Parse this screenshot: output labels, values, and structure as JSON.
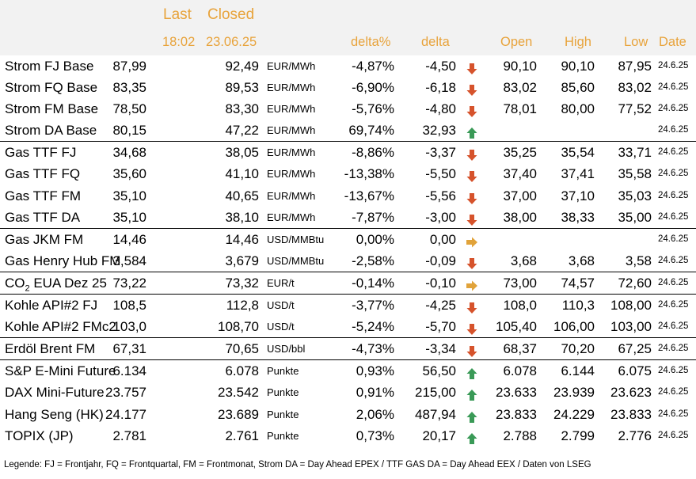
{
  "header": {
    "last_label": "Last",
    "closed_label": "Closed",
    "last_time": "18:02",
    "closed_date": "23.06.25",
    "delta_pct_label": "delta%",
    "delta_label": "delta",
    "open_label": "Open",
    "high_label": "High",
    "low_label": "Low",
    "date_label": "Date"
  },
  "colors": {
    "header_text": "#e8a33b",
    "up": "#3a9a57",
    "down": "#d6532c",
    "flat": "#e1a33a",
    "header_bg": "#f2f2f2"
  },
  "rows": [
    {
      "name": "Strom FJ Base",
      "last": "87,99",
      "closed": "92,49",
      "unit": "EUR/MWh",
      "delta_pct": "-4,87%",
      "delta": "-4,50",
      "dir": "down",
      "open": "90,10",
      "high": "90,10",
      "low": "87,95",
      "date": "24.6.25"
    },
    {
      "name": "Strom FQ Base",
      "last": "83,35",
      "closed": "89,53",
      "unit": "EUR/MWh",
      "delta_pct": "-6,90%",
      "delta": "-6,18",
      "dir": "down",
      "open": "83,02",
      "high": "85,60",
      "low": "83,02",
      "date": "24.6.25"
    },
    {
      "name": "Strom FM Base",
      "last": "78,50",
      "closed": "83,30",
      "unit": "EUR/MWh",
      "delta_pct": "-5,76%",
      "delta": "-4,80",
      "dir": "down",
      "open": "78,01",
      "high": "80,00",
      "low": "77,52",
      "date": "24.6.25"
    },
    {
      "name": "Strom DA Base",
      "last": "80,15",
      "closed": "47,22",
      "unit": "EUR/MWh",
      "delta_pct": "69,74%",
      "delta": "32,93",
      "dir": "up",
      "open": "",
      "high": "",
      "low": "",
      "date": "24.6.25"
    },
    {
      "name": "Gas TTF FJ",
      "last": "34,68",
      "closed": "38,05",
      "unit": "EUR/MWh",
      "delta_pct": "-8,86%",
      "delta": "-3,37",
      "dir": "down",
      "open": "35,25",
      "high": "35,54",
      "low": "33,71",
      "date": "24.6.25",
      "sep": true
    },
    {
      "name": "Gas TTF FQ",
      "last": "35,60",
      "closed": "41,10",
      "unit": "EUR/MWh",
      "delta_pct": "-13,38%",
      "delta": "-5,50",
      "dir": "down",
      "open": "37,40",
      "high": "37,41",
      "low": "35,58",
      "date": "24.6.25"
    },
    {
      "name": "Gas TTF FM",
      "last": "35,10",
      "closed": "40,65",
      "unit": "EUR/MWh",
      "delta_pct": "-13,67%",
      "delta": "-5,56",
      "dir": "down",
      "open": "37,00",
      "high": "37,10",
      "low": "35,03",
      "date": "24.6.25"
    },
    {
      "name": "Gas TTF DA",
      "last": "35,10",
      "closed": "38,10",
      "unit": "EUR/MWh",
      "delta_pct": "-7,87%",
      "delta": "-3,00",
      "dir": "down",
      "open": "38,00",
      "high": "38,33",
      "low": "35,00",
      "date": "24.6.25"
    },
    {
      "name": "Gas JKM FM",
      "last": "14,46",
      "closed": "14,46",
      "unit": "USD/MMBtu",
      "delta_pct": "0,00%",
      "delta": "0,00",
      "dir": "flat",
      "open": "",
      "high": "",
      "low": "",
      "date": "24.6.25",
      "sep": true
    },
    {
      "name": "Gas Henry Hub FM",
      "last": "3,584",
      "closed": "3,679",
      "unit": "USD/MMBtu",
      "delta_pct": "-2,58%",
      "delta": "-0,09",
      "dir": "down",
      "open": "3,68",
      "high": "3,68",
      "low": "3,58",
      "date": "24.6.25"
    },
    {
      "name": "CO",
      "sub": "2",
      "name_rest": " EUA Dez 25",
      "last": "73,22",
      "closed": "73,32",
      "unit": "EUR/t",
      "delta_pct": "-0,14%",
      "delta": "-0,10",
      "dir": "flat",
      "open": "73,00",
      "high": "74,57",
      "low": "72,60",
      "date": "24.6.25",
      "sep": true
    },
    {
      "name": "Kohle API#2 FJ",
      "last": "108,5",
      "closed": "112,8",
      "unit": "USD/t",
      "delta_pct": "-3,77%",
      "delta": "-4,25",
      "dir": "down",
      "open": "108,0",
      "high": "110,3",
      "low": "108,00",
      "date": "24.6.25",
      "sep": true
    },
    {
      "name": "Kohle API#2 FMc2",
      "last": "103,0",
      "closed": "108,70",
      "unit": "USD/t",
      "delta_pct": "-5,24%",
      "delta": "-5,70",
      "dir": "down",
      "open": "105,40",
      "high": "106,00",
      "low": "103,00",
      "date": "24.6.25"
    },
    {
      "name": "Erdöl Brent FM",
      "last": "67,31",
      "closed": "70,65",
      "unit": "USD/bbl",
      "delta_pct": "-4,73%",
      "delta": "-3,34",
      "dir": "down",
      "open": "68,37",
      "high": "70,20",
      "low": "67,25",
      "date": "24.6.25",
      "sep": true
    },
    {
      "name": "S&P E-Mini Future",
      "last": "6.134",
      "closed": "6.078",
      "unit": "Punkte",
      "delta_pct": "0,93%",
      "delta": "56,50",
      "dir": "up",
      "open": "6.078",
      "high": "6.144",
      "low": "6.075",
      "date": "24.6.25",
      "sep": true
    },
    {
      "name": "DAX Mini-Future",
      "last": "23.757",
      "closed": "23.542",
      "unit": "Punkte",
      "delta_pct": "0,91%",
      "delta": "215,00",
      "dir": "up",
      "open": "23.633",
      "high": "23.939",
      "low": "23.623",
      "date": "24.6.25"
    },
    {
      "name": "Hang Seng (HK)",
      "last": "24.177",
      "closed": "23.689",
      "unit": "Punkte",
      "delta_pct": "2,06%",
      "delta": "487,94",
      "dir": "up",
      "open": "23.833",
      "high": "24.229",
      "low": "23.833",
      "date": "24.6.25"
    },
    {
      "name": "TOPIX (JP)",
      "last": "2.781",
      "closed": "2.761",
      "unit": "Punkte",
      "delta_pct": "0,73%",
      "delta": "20,17",
      "dir": "up",
      "open": "2.788",
      "high": "2.799",
      "low": "2.776",
      "date": "24.6.25"
    }
  ],
  "legend": "Legende: FJ = Frontjahr, FQ = Frontquartal, FM = Frontmonat, Strom DA = Day Ahead EPEX / TTF GAS DA = Day Ahead EEX / Daten von LSEG"
}
